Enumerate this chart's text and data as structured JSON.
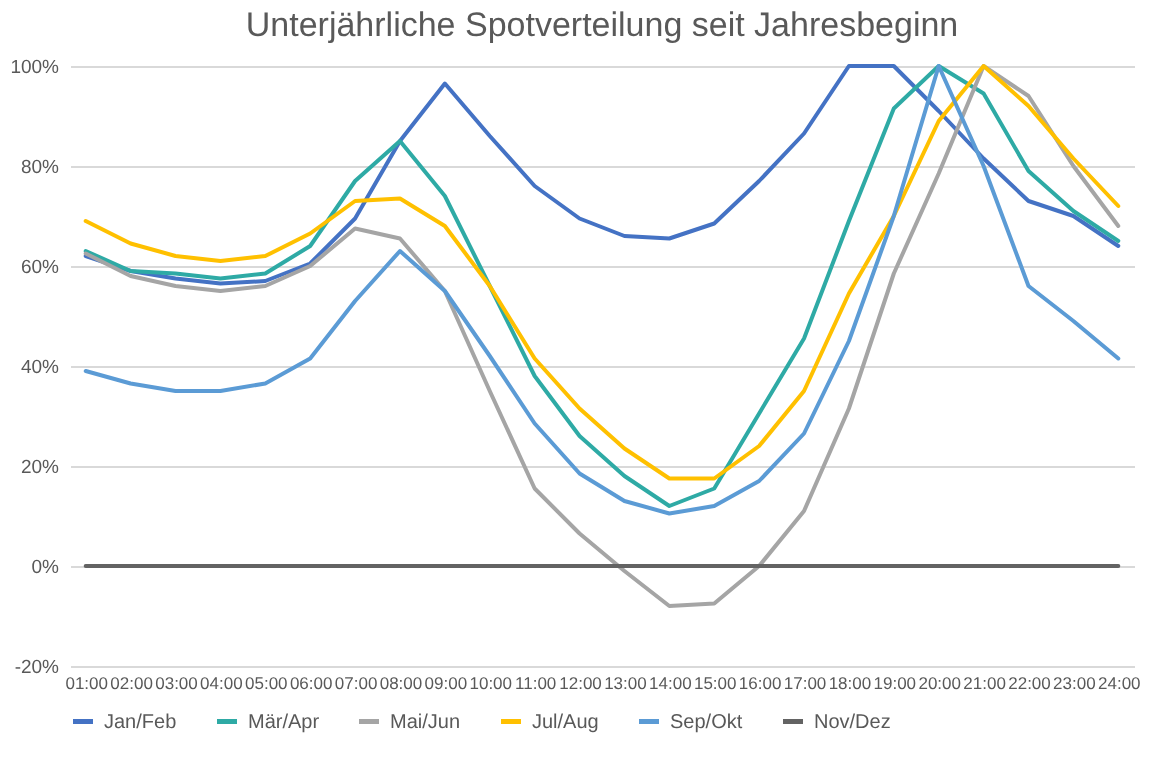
{
  "chart_data": {
    "type": "line",
    "title": "Unterjährliche Spotverteilung seit Jahresbeginn",
    "categories": [
      "01:00",
      "02:00",
      "03:00",
      "04:00",
      "05:00",
      "06:00",
      "07:00",
      "08:00",
      "09:00",
      "10:00",
      "11:00",
      "12:00",
      "13:00",
      "14:00",
      "15:00",
      "16:00",
      "17:00",
      "18:00",
      "19:00",
      "20:00",
      "21:00",
      "22:00",
      "23:00",
      "24:00"
    ],
    "series": [
      {
        "name": "Jan/Feb",
        "color": "#4472c4",
        "values": [
          62,
          59,
          57.5,
          56.5,
          57,
          60.5,
          69.5,
          85,
          96.5,
          86,
          76,
          69.5,
          66,
          65.5,
          68.5,
          77,
          86.5,
          100,
          100,
          91,
          81.5,
          73,
          70,
          64
        ]
      },
      {
        "name": "Mär/Apr",
        "color": "#2eaaa5",
        "values": [
          63,
          59,
          58.5,
          57.5,
          58.5,
          64,
          77,
          85,
          74,
          56,
          38,
          26,
          18,
          12,
          15.5,
          30.5,
          45.5,
          69,
          91.5,
          100,
          94.5,
          79,
          71,
          65
        ]
      },
      {
        "name": "Mai/Jun",
        "color": "#a5a5a5",
        "values": [
          62.5,
          58,
          56,
          55,
          56,
          60,
          67.5,
          65.5,
          55,
          35,
          15.5,
          6.5,
          -1,
          -8,
          -7.5,
          0,
          11,
          31.5,
          58.5,
          78.5,
          100,
          94,
          80,
          68
        ]
      },
      {
        "name": "Jul/Aug",
        "color": "#ffc000",
        "values": [
          69,
          64.5,
          62,
          61,
          62,
          66.5,
          73,
          73.5,
          68,
          56,
          41.5,
          31.5,
          23.5,
          17.5,
          17.5,
          24,
          35,
          54.5,
          70,
          89,
          100,
          92,
          81.5,
          72
        ]
      },
      {
        "name": "Sep/Okt",
        "color": "#5b9bd5",
        "values": [
          39,
          36.5,
          35,
          35,
          36.5,
          41.5,
          53,
          63,
          55,
          42,
          28.5,
          18.5,
          13,
          10.5,
          12,
          17,
          26.5,
          45,
          70,
          100,
          80,
          56,
          49,
          41.5
        ]
      },
      {
        "name": "Nov/Dez",
        "color": "#636363",
        "values": [
          0,
          0,
          0,
          0,
          0,
          0,
          0,
          0,
          0,
          0,
          0,
          0,
          0,
          0,
          0,
          0,
          0,
          0,
          0,
          0,
          0,
          0,
          0,
          0
        ]
      }
    ],
    "ylim": [
      -20,
      100
    ],
    "yticks": [
      {
        "value": -20,
        "label": "-20%"
      },
      {
        "value": 0,
        "label": "0%"
      },
      {
        "value": 20,
        "label": "20%"
      },
      {
        "value": 40,
        "label": "40%"
      },
      {
        "value": 60,
        "label": "60%"
      },
      {
        "value": 80,
        "label": "80%"
      },
      {
        "value": 100,
        "label": "100%"
      }
    ],
    "grid": "y",
    "legend": "bottom",
    "marker": "none",
    "line_style": "solid"
  }
}
